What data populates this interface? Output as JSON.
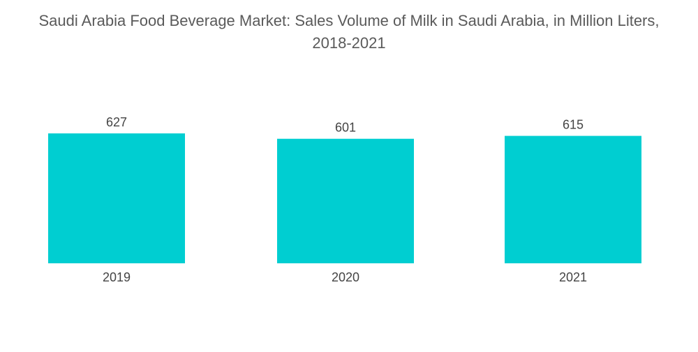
{
  "title_line1": "Saudi Arabia Food Beverage Market: Sales Volume of Milk in Saudi Arabia, in Million Liters,",
  "title_line2": "2018-2021",
  "colors": {
    "bar": "#00CED1",
    "text": "#555555"
  },
  "chart_data": {
    "type": "bar",
    "title": "Saudi Arabia Food Beverage Market: Sales Volume of Milk in Saudi Arabia, in Million Liters, 2018-2021",
    "categories": [
      "2019",
      "2020",
      "2021"
    ],
    "values": [
      627,
      601,
      615
    ],
    "xlabel": "",
    "ylabel": "",
    "grid": false,
    "legend": "none"
  }
}
